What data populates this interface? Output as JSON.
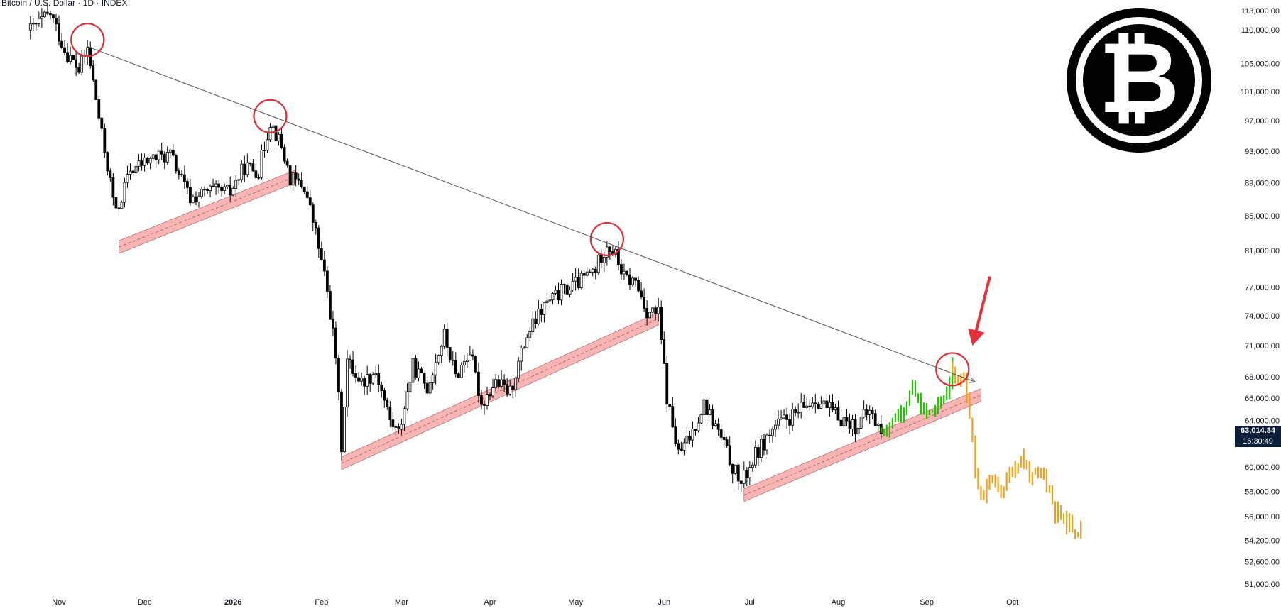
{
  "symbol": {
    "title": "Bitcoin / U.S. Dollar · 1D · INDEX"
  },
  "current_price": {
    "price": "63,014.84",
    "countdown": "16:30:49",
    "value": 63014.84
  },
  "logo": {
    "name": "bitcoin-logo",
    "color": "#000000"
  },
  "colors": {
    "candle_up": "#ffffff",
    "candle_down": "#000000",
    "projection_green": "#22c500",
    "projection_orange": "#f0a020",
    "support_band": "#f5a3a3",
    "circle": "#d9303a",
    "arrow": "#e5303a",
    "trendline": "#555555"
  },
  "chart_data": {
    "type": "candlestick",
    "title": "Bitcoin / U.S. Dollar · 1D · INDEX",
    "xlabel": "",
    "ylabel": "",
    "ylim": [
      50000,
      114000
    ],
    "x_ticks": [
      {
        "label": "Nov",
        "date": "2025-11-01",
        "bold": false
      },
      {
        "label": "Dec",
        "date": "2025-12-01",
        "bold": false
      },
      {
        "label": "2026",
        "date": "2026-01-01",
        "bold": true
      },
      {
        "label": "Feb",
        "date": "2026-02-01",
        "bold": false
      },
      {
        "label": "Mar",
        "date": "2026-03-01",
        "bold": false
      },
      {
        "label": "Apr",
        "date": "2026-04-01",
        "bold": false
      },
      {
        "label": "May",
        "date": "2026-05-01",
        "bold": false
      },
      {
        "label": "Jun",
        "date": "2026-06-01",
        "bold": false
      },
      {
        "label": "Jul",
        "date": "2026-07-01",
        "bold": false
      },
      {
        "label": "Aug",
        "date": "2026-08-01",
        "bold": false
      },
      {
        "label": "Sep",
        "date": "2026-09-01",
        "bold": false
      },
      {
        "label": "Oct",
        "date": "2026-10-01",
        "bold": false
      }
    ],
    "y_ticks": [
      "113,000.00",
      "110,000.00",
      "105,000.00",
      "101,000.00",
      "97,000.00",
      "93,000.00",
      "89,000.00",
      "85,000.00",
      "81,000.00",
      "77,000.00",
      "74,000.00",
      "71,000.00",
      "68,000.00",
      "66,000.00",
      "64,000.00",
      "60,000.00",
      "58,000.00",
      "56,000.00",
      "54,200.00",
      "52,600.00",
      "51,000.00"
    ],
    "price_path": [
      {
        "date": "2025-10-22",
        "close": 110000
      },
      {
        "date": "2025-10-29",
        "close": 112500
      },
      {
        "date": "2025-11-03",
        "close": 107000
      },
      {
        "date": "2025-11-08",
        "close": 104000
      },
      {
        "date": "2025-11-11",
        "close": 107200
      },
      {
        "date": "2025-11-16",
        "close": 95000
      },
      {
        "date": "2025-11-21",
        "close": 85200
      },
      {
        "date": "2025-11-26",
        "close": 90500
      },
      {
        "date": "2025-12-03",
        "close": 92000
      },
      {
        "date": "2025-12-10",
        "close": 92500
      },
      {
        "date": "2025-12-17",
        "close": 87000
      },
      {
        "date": "2025-12-24",
        "close": 88000
      },
      {
        "date": "2025-12-31",
        "close": 87800
      },
      {
        "date": "2026-01-05",
        "close": 91000
      },
      {
        "date": "2026-01-10",
        "close": 90500
      },
      {
        "date": "2026-01-14",
        "close": 97000
      },
      {
        "date": "2026-01-18",
        "close": 93500
      },
      {
        "date": "2026-01-21",
        "close": 89500
      },
      {
        "date": "2026-01-26",
        "close": 88500
      },
      {
        "date": "2026-01-30",
        "close": 83000
      },
      {
        "date": "2026-02-03",
        "close": 76500
      },
      {
        "date": "2026-02-06",
        "close": 70000
      },
      {
        "date": "2026-02-08",
        "close": 61800
      },
      {
        "date": "2026-02-10",
        "close": 69500
      },
      {
        "date": "2026-02-15",
        "close": 67500
      },
      {
        "date": "2026-02-20",
        "close": 68500
      },
      {
        "date": "2026-02-25",
        "close": 64000
      },
      {
        "date": "2026-02-28",
        "close": 62800
      },
      {
        "date": "2026-03-05",
        "close": 69000
      },
      {
        "date": "2026-03-10",
        "close": 67000
      },
      {
        "date": "2026-03-16",
        "close": 72000
      },
      {
        "date": "2026-03-20",
        "close": 68000
      },
      {
        "date": "2026-03-25",
        "close": 70500
      },
      {
        "date": "2026-03-29",
        "close": 65500
      },
      {
        "date": "2026-04-03",
        "close": 67500
      },
      {
        "date": "2026-04-08",
        "close": 66500
      },
      {
        "date": "2026-04-14",
        "close": 72000
      },
      {
        "date": "2026-04-20",
        "close": 75000
      },
      {
        "date": "2026-04-26",
        "close": 76500
      },
      {
        "date": "2026-05-02",
        "close": 77500
      },
      {
        "date": "2026-05-08",
        "close": 79000
      },
      {
        "date": "2026-05-12",
        "close": 81800
      },
      {
        "date": "2026-05-15",
        "close": 80500
      },
      {
        "date": "2026-05-18",
        "close": 78000
      },
      {
        "date": "2026-05-22",
        "close": 77500
      },
      {
        "date": "2026-05-26",
        "close": 74500
      },
      {
        "date": "2026-05-30",
        "close": 74200
      },
      {
        "date": "2026-06-02",
        "close": 66000
      },
      {
        "date": "2026-06-06",
        "close": 61000
      },
      {
        "date": "2026-06-10",
        "close": 62500
      },
      {
        "date": "2026-06-15",
        "close": 65500
      },
      {
        "date": "2026-06-20",
        "close": 63000
      },
      {
        "date": "2026-06-25",
        "close": 60000
      },
      {
        "date": "2026-06-28",
        "close": 58600
      },
      {
        "date": "2026-07-03",
        "close": 61000
      },
      {
        "date": "2026-07-10",
        "close": 63500
      },
      {
        "date": "2026-07-17",
        "close": 64500
      },
      {
        "date": "2026-07-24",
        "close": 66000
      },
      {
        "date": "2026-07-31",
        "close": 64500
      },
      {
        "date": "2026-08-07",
        "close": 63500
      },
      {
        "date": "2026-08-12",
        "close": 64800
      },
      {
        "date": "2026-08-16",
        "close": 63000
      }
    ],
    "projection_green": [
      {
        "date": "2026-08-16",
        "close": 63000
      },
      {
        "date": "2026-08-20",
        "close": 64000
      },
      {
        "date": "2026-08-24",
        "close": 65300
      },
      {
        "date": "2026-08-27",
        "close": 66800
      },
      {
        "date": "2026-08-29",
        "close": 65500
      },
      {
        "date": "2026-09-01",
        "close": 64500
      },
      {
        "date": "2026-09-04",
        "close": 65000
      },
      {
        "date": "2026-09-07",
        "close": 66000
      },
      {
        "date": "2026-09-10",
        "close": 68600
      }
    ],
    "projection_orange": [
      {
        "date": "2026-09-10",
        "close": 68600
      },
      {
        "date": "2026-09-12",
        "close": 68200
      },
      {
        "date": "2026-09-14",
        "close": 67500
      },
      {
        "date": "2026-09-16",
        "close": 64500
      },
      {
        "date": "2026-09-18",
        "close": 59500
      },
      {
        "date": "2026-09-20",
        "close": 57000
      },
      {
        "date": "2026-09-23",
        "close": 59000
      },
      {
        "date": "2026-09-27",
        "close": 58000
      },
      {
        "date": "2026-10-01",
        "close": 59800
      },
      {
        "date": "2026-10-04",
        "close": 60800
      },
      {
        "date": "2026-10-08",
        "close": 59000
      },
      {
        "date": "2026-10-12",
        "close": 59500
      },
      {
        "date": "2026-10-16",
        "close": 56500
      },
      {
        "date": "2026-10-20",
        "close": 55500
      },
      {
        "date": "2026-10-25",
        "close": 55000
      }
    ],
    "annotations": {
      "resistance_line": [
        {
          "date": "2025-11-11",
          "price": 107500
        },
        {
          "date": "2026-09-18",
          "price": 67500
        }
      ],
      "support_bands": [
        {
          "from": {
            "date": "2025-11-22",
            "price": 81400
          },
          "to": {
            "date": "2026-01-23",
            "price": 89800
          }
        },
        {
          "from": {
            "date": "2026-02-08",
            "price": 60300
          },
          "to": {
            "date": "2026-05-30",
            "price": 73700
          }
        },
        {
          "from": {
            "date": "2026-06-29",
            "price": 57700
          },
          "to": {
            "date": "2026-09-20",
            "price": 66300
          }
        }
      ],
      "circled_highs": [
        {
          "date": "2025-11-11",
          "price": 108500
        },
        {
          "date": "2026-01-14",
          "price": 97600
        },
        {
          "date": "2026-05-12",
          "price": 82300
        },
        {
          "date": "2026-09-10",
          "price": 68700
        }
      ],
      "arrow": {
        "from": {
          "date": "2026-09-23",
          "price": 78000
        },
        "to": {
          "date": "2026-09-17",
          "price": 71000
        }
      }
    }
  }
}
